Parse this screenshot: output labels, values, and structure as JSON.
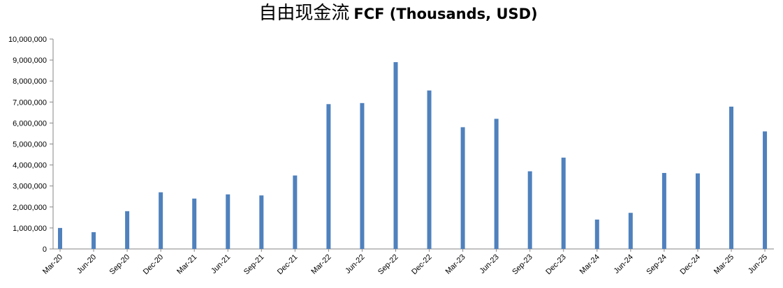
{
  "chart_data": {
    "type": "bar",
    "title_zh": "自由现金流",
    "title_en": "FCF (Thousands, USD)",
    "xlabel": "",
    "ylabel": "",
    "ylim": [
      0,
      10000000
    ],
    "y_ticks": [
      "0",
      "1,000,000",
      "2,000,000",
      "3,000,000",
      "4,000,000",
      "5,000,000",
      "6,000,000",
      "7,000,000",
      "8,000,000",
      "9,000,000",
      "10,000,000"
    ],
    "categories": [
      "Mar-20",
      "Jun-20",
      "Sep-20",
      "Dec-20",
      "Mar-21",
      "Jun-21",
      "Sep-21",
      "Dec-21",
      "Mar-22",
      "Jun-22",
      "Sep-22",
      "Dec-22",
      "Mar-23",
      "Jun-23",
      "Sep-23",
      "Dec-23",
      "Mar-24",
      "Jun-24",
      "Sep-24",
      "Dec-24",
      "Mar-25",
      "Jun-25"
    ],
    "values": [
      1000000,
      800000,
      1800000,
      2700000,
      2400000,
      2600000,
      2550000,
      3500000,
      6900000,
      6950000,
      8900000,
      7550000,
      5800000,
      6200000,
      3700000,
      4350000,
      1400000,
      1720000,
      3620000,
      3600000,
      6780000,
      5600000
    ],
    "grid": false,
    "legend": "none",
    "bar_color": "#4F81BD"
  }
}
